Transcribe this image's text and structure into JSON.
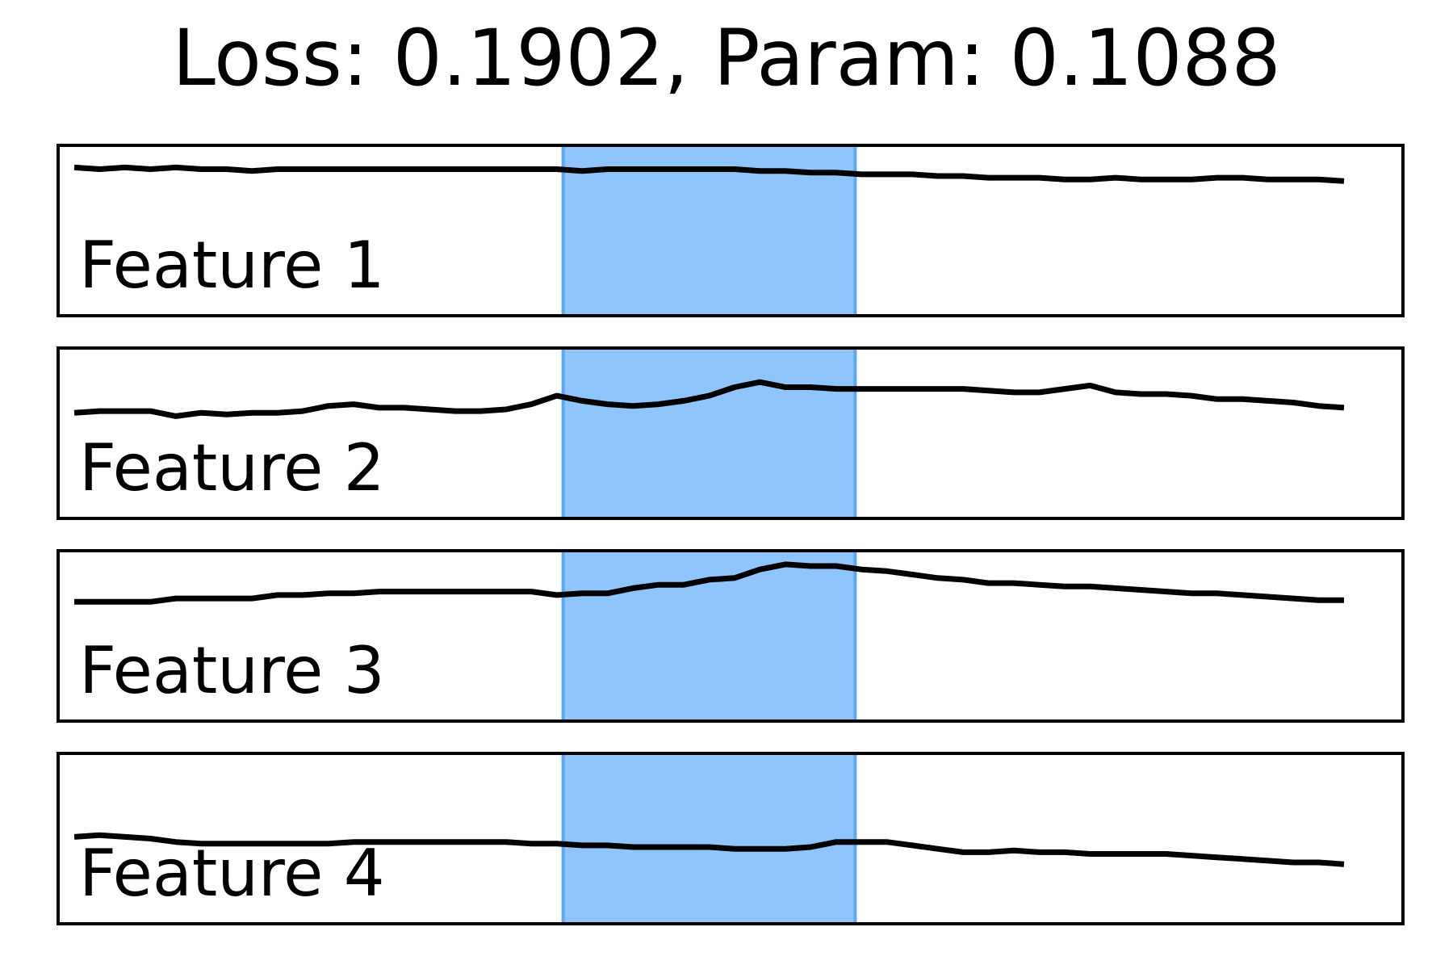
{
  "chart_data": {
    "type": "line",
    "title": "Loss: 0.1902, Param: 0.1088",
    "xlabel": "",
    "ylabel": "",
    "grid": false,
    "x_range": [
      0,
      100
    ],
    "y_range": [
      0,
      1
    ],
    "highlight_span": {
      "x_start": 38.5,
      "x_end": 61.5,
      "color": "#90c4fc",
      "edge_color": "#5ca8f6"
    },
    "series_color": "#000000",
    "series": [
      {
        "name": "Feature 1",
        "x": [
          0,
          2,
          4,
          6,
          8,
          10,
          12,
          14,
          16,
          18,
          20,
          22,
          24,
          26,
          28,
          30,
          32,
          34,
          36,
          38,
          40,
          42,
          44,
          46,
          48,
          50,
          52,
          54,
          56,
          58,
          60,
          62,
          64,
          66,
          68,
          70,
          72,
          74,
          76,
          78,
          80,
          82,
          84,
          86,
          88,
          90,
          92,
          94,
          96,
          98,
          100
        ],
        "values": [
          0.87,
          0.86,
          0.87,
          0.86,
          0.87,
          0.86,
          0.86,
          0.85,
          0.86,
          0.86,
          0.86,
          0.86,
          0.86,
          0.86,
          0.86,
          0.86,
          0.86,
          0.86,
          0.86,
          0.86,
          0.85,
          0.86,
          0.86,
          0.86,
          0.86,
          0.86,
          0.86,
          0.85,
          0.85,
          0.84,
          0.84,
          0.83,
          0.83,
          0.83,
          0.82,
          0.82,
          0.81,
          0.81,
          0.81,
          0.8,
          0.8,
          0.81,
          0.8,
          0.8,
          0.8,
          0.81,
          0.81,
          0.8,
          0.8,
          0.8,
          0.79
        ]
      },
      {
        "name": "Feature 2",
        "x": [
          0,
          2,
          4,
          6,
          8,
          10,
          12,
          14,
          16,
          18,
          20,
          22,
          24,
          26,
          28,
          30,
          32,
          34,
          36,
          38,
          40,
          42,
          44,
          46,
          48,
          50,
          52,
          54,
          56,
          58,
          60,
          62,
          64,
          66,
          68,
          70,
          72,
          74,
          76,
          78,
          80,
          82,
          84,
          86,
          88,
          90,
          92,
          94,
          96,
          98,
          100
        ],
        "values": [
          0.62,
          0.63,
          0.63,
          0.63,
          0.6,
          0.62,
          0.61,
          0.62,
          0.62,
          0.63,
          0.66,
          0.67,
          0.65,
          0.65,
          0.64,
          0.63,
          0.63,
          0.64,
          0.67,
          0.72,
          0.69,
          0.67,
          0.66,
          0.67,
          0.69,
          0.72,
          0.77,
          0.8,
          0.77,
          0.77,
          0.76,
          0.76,
          0.76,
          0.76,
          0.76,
          0.76,
          0.75,
          0.74,
          0.74,
          0.76,
          0.78,
          0.74,
          0.73,
          0.73,
          0.72,
          0.7,
          0.7,
          0.69,
          0.68,
          0.66,
          0.65
        ]
      },
      {
        "name": "Feature 3",
        "x": [
          0,
          2,
          4,
          6,
          8,
          10,
          12,
          14,
          16,
          18,
          20,
          22,
          24,
          26,
          28,
          30,
          32,
          34,
          36,
          38,
          40,
          42,
          44,
          46,
          48,
          50,
          52,
          54,
          56,
          58,
          60,
          62,
          64,
          66,
          68,
          70,
          72,
          74,
          76,
          78,
          80,
          82,
          84,
          86,
          88,
          90,
          92,
          94,
          96,
          98,
          100
        ],
        "values": [
          0.7,
          0.7,
          0.7,
          0.7,
          0.72,
          0.72,
          0.72,
          0.72,
          0.74,
          0.74,
          0.75,
          0.75,
          0.76,
          0.76,
          0.76,
          0.76,
          0.76,
          0.76,
          0.76,
          0.74,
          0.75,
          0.75,
          0.78,
          0.8,
          0.8,
          0.83,
          0.84,
          0.89,
          0.92,
          0.91,
          0.91,
          0.89,
          0.88,
          0.86,
          0.84,
          0.83,
          0.81,
          0.81,
          0.8,
          0.79,
          0.79,
          0.78,
          0.77,
          0.76,
          0.75,
          0.75,
          0.74,
          0.73,
          0.72,
          0.71,
          0.71
        ]
      },
      {
        "name": "Feature 4",
        "x": [
          0,
          2,
          4,
          6,
          8,
          10,
          12,
          14,
          16,
          18,
          20,
          22,
          24,
          26,
          28,
          30,
          32,
          34,
          36,
          38,
          40,
          42,
          44,
          46,
          48,
          50,
          52,
          54,
          56,
          58,
          60,
          62,
          64,
          66,
          68,
          70,
          72,
          74,
          76,
          78,
          80,
          82,
          84,
          86,
          88,
          90,
          92,
          94,
          96,
          98,
          100
        ],
        "values": [
          0.51,
          0.52,
          0.51,
          0.5,
          0.48,
          0.47,
          0.47,
          0.47,
          0.47,
          0.47,
          0.47,
          0.48,
          0.48,
          0.48,
          0.48,
          0.48,
          0.48,
          0.48,
          0.47,
          0.47,
          0.46,
          0.46,
          0.45,
          0.45,
          0.45,
          0.45,
          0.44,
          0.44,
          0.44,
          0.45,
          0.48,
          0.48,
          0.48,
          0.46,
          0.44,
          0.42,
          0.42,
          0.43,
          0.42,
          0.42,
          0.41,
          0.41,
          0.41,
          0.41,
          0.4,
          0.39,
          0.38,
          0.37,
          0.36,
          0.36,
          0.35
        ]
      }
    ]
  }
}
